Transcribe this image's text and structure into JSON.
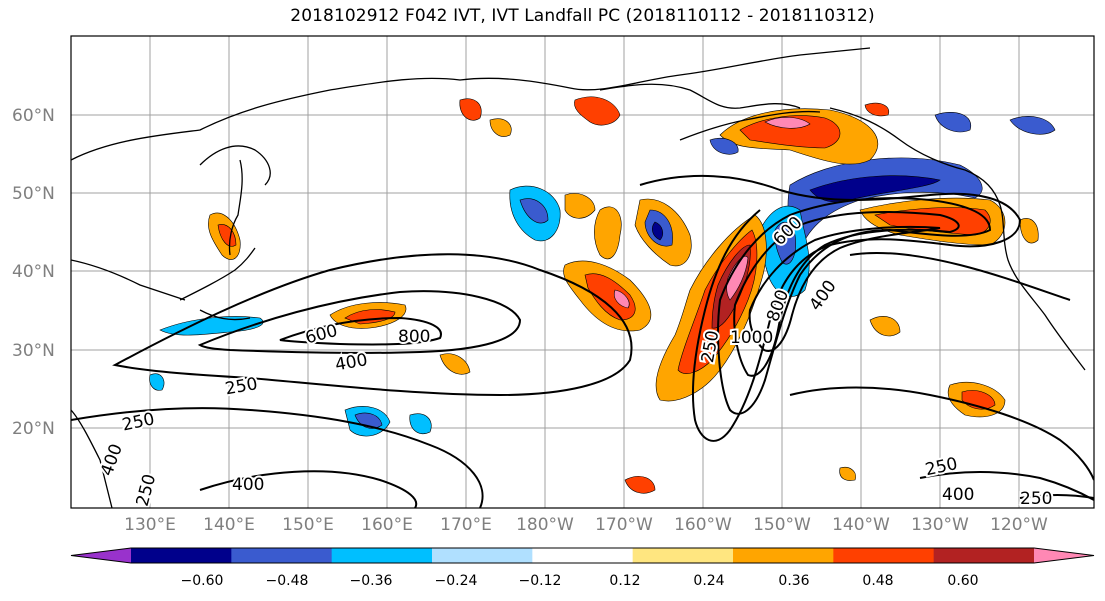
{
  "title": "2018102912 F042 IVT, IVT Landfall PC (2018110112 - 2018110312)",
  "latitudes": [
    "60°N",
    "50°N",
    "40°N",
    "30°N",
    "20°N"
  ],
  "longitudes": [
    "130°E",
    "140°E",
    "150°E",
    "160°E",
    "170°E",
    "180°W",
    "170°W",
    "160°W",
    "150°W",
    "140°W",
    "130°W",
    "120°W"
  ],
  "colorbar": {
    "ticks": [
      "−0.60",
      "−0.48",
      "−0.36",
      "−0.24",
      "−0.12",
      "0.12",
      "0.24",
      "0.36",
      "0.48",
      "0.60"
    ],
    "colors": [
      "#9932cc",
      "#00008b",
      "#3a5bcf",
      "#00bfff",
      "#b0e0ff",
      "#ffffff",
      "#ffe680",
      "#ffa500",
      "#ff4000",
      "#b22222",
      "#ff88b4"
    ]
  },
  "contour_labels": [
    "600",
    "800",
    "400",
    "250",
    "250",
    "400",
    "400",
    "250",
    "250",
    "1000",
    "600",
    "800",
    "400",
    "250",
    "400",
    "250"
  ]
}
